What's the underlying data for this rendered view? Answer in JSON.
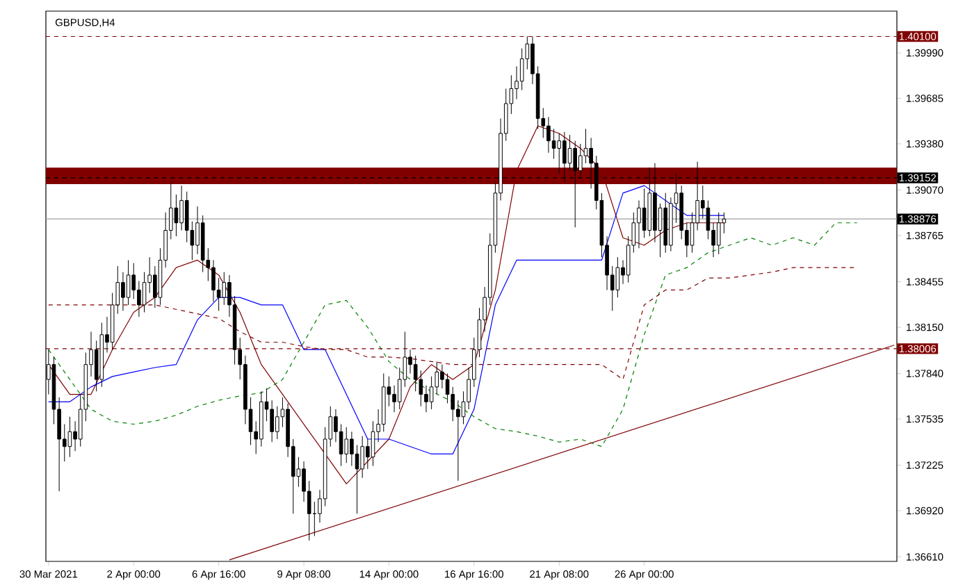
{
  "chart_data": {
    "type": "candlestick",
    "title": "GBPUSD,H4",
    "categories": [
      "30 Mar 2021",
      null,
      null,
      null,
      null,
      null,
      null,
      null,
      null,
      null,
      null,
      null,
      null,
      null,
      null,
      null,
      "2 Apr 00:00",
      null,
      null,
      null,
      null,
      null,
      null,
      null,
      null,
      null,
      null,
      null,
      null,
      null,
      null,
      null,
      "6 Apr 16:00",
      null,
      null,
      null,
      null,
      null,
      null,
      null,
      null,
      null,
      null,
      null,
      null,
      null,
      null,
      null,
      "9 Apr 08:00",
      null,
      null,
      null,
      null,
      null,
      null,
      null,
      null,
      null,
      null,
      null,
      null,
      null,
      null,
      null,
      "14 Apr 00:00",
      null,
      null,
      null,
      null,
      null,
      null,
      null,
      null,
      null,
      null,
      null,
      null,
      null,
      null,
      null,
      "16 Apr 16:00",
      null,
      null,
      null,
      null,
      null,
      null,
      null,
      null,
      null,
      null,
      null,
      null,
      null,
      null,
      null,
      "21 Apr 08:00",
      null,
      null,
      null,
      null,
      null,
      null,
      null,
      null,
      null,
      null,
      null,
      null,
      null,
      null,
      null,
      "26 Apr 00:00",
      null,
      null,
      null,
      null,
      null,
      null,
      null,
      null,
      null,
      null,
      null,
      null,
      null,
      null,
      null,
      null,
      null,
      null,
      null,
      null,
      null,
      null,
      null,
      null,
      null,
      null,
      null,
      null,
      null,
      null,
      null,
      null,
      null,
      null,
      null,
      null,
      null,
      null,
      null,
      null,
      null,
      null,
      null,
      null,
      null,
      null,
      null
    ],
    "ohlc": [
      [
        1.378,
        1.38,
        1.377,
        1.379
      ],
      [
        1.379,
        1.3795,
        1.375,
        1.376
      ],
      [
        1.376,
        1.3768,
        1.3705,
        1.374
      ],
      [
        1.374,
        1.375,
        1.3725,
        1.3735
      ],
      [
        1.3735,
        1.3755,
        1.3728,
        1.3745
      ],
      [
        1.3745,
        1.3752,
        1.3732,
        1.374
      ],
      [
        1.374,
        1.377,
        1.3735,
        1.376
      ],
      [
        1.376,
        1.3798,
        1.3752,
        1.379
      ],
      [
        1.379,
        1.3812,
        1.3782,
        1.38
      ],
      [
        1.38,
        1.3806,
        1.3772,
        1.378
      ],
      [
        1.378,
        1.3818,
        1.3775,
        1.381
      ],
      [
        1.381,
        1.3822,
        1.3798,
        1.3805
      ],
      [
        1.3805,
        1.3838,
        1.38,
        1.383
      ],
      [
        1.383,
        1.3856,
        1.3824,
        1.3845
      ],
      [
        1.3845,
        1.3852,
        1.3826,
        1.3835
      ],
      [
        1.3835,
        1.386,
        1.383,
        1.385
      ],
      [
        1.385,
        1.3858,
        1.3834,
        1.384
      ],
      [
        1.384,
        1.3846,
        1.3822,
        1.383
      ],
      [
        1.383,
        1.3852,
        1.3825,
        1.3845
      ],
      [
        1.3845,
        1.3862,
        1.3838,
        1.385
      ],
      [
        1.385,
        1.3856,
        1.3828,
        1.3835
      ],
      [
        1.3835,
        1.3868,
        1.383,
        1.386
      ],
      [
        1.386,
        1.3892,
        1.3855,
        1.388
      ],
      [
        1.388,
        1.3912,
        1.3874,
        1.3895
      ],
      [
        1.3895,
        1.3904,
        1.3876,
        1.3885
      ],
      [
        1.3885,
        1.391,
        1.388,
        1.39
      ],
      [
        1.39,
        1.3906,
        1.3872,
        1.388
      ],
      [
        1.388,
        1.3886,
        1.386,
        1.387
      ],
      [
        1.387,
        1.3896,
        1.3864,
        1.3885
      ],
      [
        1.3885,
        1.389,
        1.3852,
        1.386
      ],
      [
        1.386,
        1.3868,
        1.3846,
        1.3855
      ],
      [
        1.3855,
        1.386,
        1.3832,
        1.384
      ],
      [
        1.384,
        1.3848,
        1.3826,
        1.3835
      ],
      [
        1.3835,
        1.3852,
        1.383,
        1.3845
      ],
      [
        1.3845,
        1.385,
        1.3822,
        1.383
      ],
      [
        1.383,
        1.3836,
        1.379,
        1.38
      ],
      [
        1.38,
        1.3808,
        1.378,
        1.379
      ],
      [
        1.379,
        1.3796,
        1.375,
        1.376
      ],
      [
        1.376,
        1.3768,
        1.3736,
        1.3745
      ],
      [
        1.3745,
        1.3752,
        1.373,
        1.374
      ],
      [
        1.374,
        1.3772,
        1.3735,
        1.3765
      ],
      [
        1.3765,
        1.3774,
        1.3752,
        1.376
      ],
      [
        1.376,
        1.3766,
        1.3738,
        1.3745
      ],
      [
        1.3745,
        1.3762,
        1.374,
        1.3755
      ],
      [
        1.3755,
        1.3768,
        1.3748,
        1.376
      ],
      [
        1.376,
        1.3764,
        1.3728,
        1.3735
      ],
      [
        1.3735,
        1.374,
        1.369,
        1.3715
      ],
      [
        1.3715,
        1.3728,
        1.3708,
        1.372
      ],
      [
        1.372,
        1.3725,
        1.3698,
        1.3705
      ],
      [
        1.3705,
        1.3712,
        1.3672,
        1.369
      ],
      [
        1.369,
        1.3698,
        1.3675,
        1.369
      ],
      [
        1.369,
        1.3706,
        1.3684,
        1.37
      ],
      [
        1.37,
        1.3748,
        1.3695,
        1.374
      ],
      [
        1.374,
        1.3762,
        1.3735,
        1.3755
      ],
      [
        1.3755,
        1.376,
        1.3738,
        1.3745
      ],
      [
        1.3745,
        1.375,
        1.3722,
        1.373
      ],
      [
        1.373,
        1.3748,
        1.3724,
        1.374
      ],
      [
        1.374,
        1.3745,
        1.3722,
        1.373
      ],
      [
        1.373,
        1.3736,
        1.369,
        1.372
      ],
      [
        1.372,
        1.3742,
        1.3714,
        1.3735
      ],
      [
        1.3735,
        1.374,
        1.372,
        1.3728
      ],
      [
        1.3728,
        1.3752,
        1.3722,
        1.3745
      ],
      [
        1.3745,
        1.376,
        1.3738,
        1.375
      ],
      [
        1.375,
        1.3784,
        1.3745,
        1.3775
      ],
      [
        1.3775,
        1.3782,
        1.3762,
        1.377
      ],
      [
        1.377,
        1.3776,
        1.3758,
        1.3765
      ],
      [
        1.3765,
        1.3788,
        1.376,
        1.378
      ],
      [
        1.378,
        1.3812,
        1.3775,
        1.3795
      ],
      [
        1.3795,
        1.38,
        1.3784,
        1.379
      ],
      [
        1.379,
        1.3796,
        1.3772,
        1.378
      ],
      [
        1.378,
        1.3786,
        1.3762,
        1.377
      ],
      [
        1.377,
        1.3776,
        1.3758,
        1.3765
      ],
      [
        1.3765,
        1.3782,
        1.376,
        1.3775
      ],
      [
        1.3775,
        1.3792,
        1.377,
        1.3785
      ],
      [
        1.3785,
        1.379,
        1.3774,
        1.378
      ],
      [
        1.378,
        1.3784,
        1.3764,
        1.377
      ],
      [
        1.377,
        1.3775,
        1.3752,
        1.376
      ],
      [
        1.376,
        1.3766,
        1.3712,
        1.3755
      ],
      [
        1.3755,
        1.3772,
        1.375,
        1.3765
      ],
      [
        1.3765,
        1.3788,
        1.376,
        1.378
      ],
      [
        1.378,
        1.3808,
        1.3775,
        1.38
      ],
      [
        1.38,
        1.3828,
        1.3795,
        1.382
      ],
      [
        1.382,
        1.3842,
        1.3812,
        1.3835
      ],
      [
        1.3835,
        1.3878,
        1.383,
        1.387
      ],
      [
        1.387,
        1.3912,
        1.3865,
        1.3905
      ],
      [
        1.3905,
        1.3955,
        1.39,
        1.3945
      ],
      [
        1.3945,
        1.3975,
        1.394,
        1.3965
      ],
      [
        1.3965,
        1.3984,
        1.3958,
        1.3975
      ],
      [
        1.3975,
        1.399,
        1.3968,
        1.398
      ],
      [
        1.398,
        1.4002,
        1.3974,
        1.3995
      ],
      [
        1.3995,
        1.401,
        1.3988,
        1.4005
      ],
      [
        1.4005,
        1.401,
        1.3978,
        1.3985
      ],
      [
        1.3985,
        1.399,
        1.3948,
        1.3955
      ],
      [
        1.3955,
        1.3962,
        1.3942,
        1.395
      ],
      [
        1.395,
        1.3956,
        1.3932,
        1.394
      ],
      [
        1.394,
        1.3948,
        1.3928,
        1.3935
      ],
      [
        1.3935,
        1.3945,
        1.3918,
        1.394
      ],
      [
        1.394,
        1.3946,
        1.3912,
        1.3925
      ],
      [
        1.3925,
        1.3944,
        1.392,
        1.3935
      ],
      [
        1.3935,
        1.394,
        1.3882,
        1.392
      ],
      [
        1.392,
        1.3938,
        1.3915,
        1.393
      ],
      [
        1.393,
        1.3948,
        1.3925,
        1.3935
      ],
      [
        1.3935,
        1.3942,
        1.3908,
        1.3925
      ],
      [
        1.3925,
        1.393,
        1.3894,
        1.39
      ],
      [
        1.39,
        1.3905,
        1.3862,
        1.387
      ],
      [
        1.387,
        1.3876,
        1.384,
        1.385
      ],
      [
        1.385,
        1.3856,
        1.3826,
        1.384
      ],
      [
        1.384,
        1.3862,
        1.3835,
        1.3855
      ],
      [
        1.3855,
        1.386,
        1.3844,
        1.385
      ],
      [
        1.385,
        1.3876,
        1.3845,
        1.387
      ],
      [
        1.387,
        1.3892,
        1.3865,
        1.3885
      ],
      [
        1.3885,
        1.39,
        1.3868,
        1.3895
      ],
      [
        1.3895,
        1.3908,
        1.3875,
        1.388
      ],
      [
        1.388,
        1.3922,
        1.3876,
        1.3905
      ],
      [
        1.3905,
        1.3925,
        1.3872,
        1.388
      ],
      [
        1.388,
        1.3898,
        1.3862,
        1.3895
      ],
      [
        1.3895,
        1.3905,
        1.3865,
        1.387
      ],
      [
        1.387,
        1.3902,
        1.3866,
        1.3898
      ],
      [
        1.3898,
        1.3918,
        1.3885,
        1.3905
      ],
      [
        1.3905,
        1.391,
        1.3874,
        1.388
      ],
      [
        1.388,
        1.3885,
        1.3862,
        1.387
      ],
      [
        1.387,
        1.3892,
        1.3865,
        1.3885
      ],
      [
        1.3885,
        1.3926,
        1.388,
        1.39
      ],
      [
        1.39,
        1.391,
        1.3888,
        1.3895
      ],
      [
        1.3895,
        1.39,
        1.3874,
        1.388
      ],
      [
        1.388,
        1.3885,
        1.3862,
        1.387
      ],
      [
        1.387,
        1.3892,
        1.3864,
        1.3885
      ],
      [
        1.3885,
        1.3892,
        1.3878,
        1.38876
      ],
      null,
      null,
      null,
      null,
      null,
      null,
      null,
      null,
      null,
      null,
      null,
      null,
      null,
      null,
      null,
      null,
      null,
      null,
      null,
      null,
      null,
      null,
      null,
      null,
      null,
      null,
      null,
      null,
      null,
      null,
      null,
      null
    ],
    "series": [
      {
        "type": "line",
        "color": "#800000",
        "line_style": "solid",
        "values": [
          1.379,
          null,
          null,
          null,
          1.377,
          null,
          null,
          null,
          1.377,
          null,
          null,
          null,
          1.38,
          null,
          null,
          null,
          1.3825,
          null,
          null,
          null,
          1.3835,
          null,
          null,
          null,
          1.3855,
          null,
          null,
          null,
          1.386,
          null,
          null,
          null,
          1.385,
          null,
          null,
          null,
          1.3825,
          null,
          null,
          null,
          1.379,
          null,
          null,
          null,
          1.377,
          null,
          null,
          null,
          1.375,
          null,
          null,
          null,
          1.373,
          null,
          null,
          null,
          1.371,
          null,
          null,
          null,
          1.3725,
          null,
          null,
          null,
          1.374,
          null,
          null,
          null,
          1.3775,
          null,
          null,
          null,
          1.379,
          null,
          null,
          null,
          1.378,
          null,
          null,
          null,
          1.379,
          null,
          null,
          null,
          1.384,
          null,
          null,
          null,
          1.392,
          null,
          null,
          null,
          1.395,
          null,
          null,
          null,
          1.3945,
          null,
          null,
          null,
          1.3935,
          null,
          null,
          null,
          1.392,
          null,
          null,
          null,
          1.3875,
          null,
          null,
          null,
          1.387,
          null,
          null,
          null,
          1.388,
          null,
          null,
          null,
          1.3885,
          null,
          null,
          null,
          1.3885,
          null,
          null,
          1.3885,
          null,
          null,
          null,
          null,
          null,
          null,
          null,
          null,
          null,
          null,
          null,
          null,
          null,
          null,
          null,
          null,
          null,
          null,
          null,
          null,
          null,
          null,
          null,
          null,
          null,
          null,
          null,
          null,
          null,
          null,
          null,
          null
        ]
      },
      {
        "type": "line",
        "color": "#0000ff",
        "line_style": "solid",
        "values": [
          1.3765,
          null,
          null,
          null,
          1.3765,
          null,
          null,
          null,
          1.3775,
          null,
          null,
          null,
          1.3782,
          null,
          null,
          null,
          1.3785,
          null,
          null,
          null,
          1.3788,
          null,
          null,
          null,
          1.379,
          null,
          null,
          null,
          1.382,
          null,
          null,
          null,
          1.3835,
          null,
          null,
          null,
          1.3835,
          null,
          null,
          null,
          1.383,
          null,
          null,
          null,
          1.383,
          null,
          null,
          null,
          1.38,
          null,
          null,
          null,
          1.38,
          null,
          null,
          null,
          1.377,
          null,
          null,
          null,
          1.374,
          null,
          null,
          null,
          1.374,
          null,
          null,
          null,
          1.3735,
          null,
          null,
          null,
          1.373,
          null,
          null,
          null,
          1.373,
          null,
          null,
          null,
          1.376,
          null,
          null,
          null,
          1.383,
          null,
          null,
          null,
          1.386,
          null,
          null,
          null,
          1.386,
          null,
          null,
          null,
          1.386,
          null,
          null,
          null,
          1.386,
          null,
          null,
          null,
          1.386,
          null,
          null,
          null,
          1.3905,
          null,
          null,
          null,
          1.391,
          null,
          null,
          null,
          1.39,
          null,
          null,
          null,
          1.389,
          null,
          null,
          null,
          1.389,
          null,
          null,
          1.389,
          null,
          null,
          null,
          null,
          null,
          null,
          null,
          null,
          null,
          null,
          null,
          null,
          null,
          null,
          null,
          null,
          null,
          null,
          null,
          null,
          null,
          null,
          null,
          null,
          null,
          null,
          null,
          null,
          null,
          null,
          null,
          null
        ]
      },
      {
        "type": "line",
        "color": "#008000",
        "line_style": "dashed",
        "values": [
          1.38,
          null,
          null,
          null,
          1.378,
          null,
          null,
          null,
          1.376,
          null,
          null,
          null,
          1.3752,
          null,
          null,
          null,
          1.375,
          null,
          null,
          null,
          1.3752,
          null,
          null,
          null,
          1.3756,
          null,
          null,
          null,
          1.3762,
          null,
          null,
          null,
          1.3766,
          null,
          null,
          null,
          1.3769,
          null,
          null,
          null,
          1.3771,
          null,
          null,
          null,
          1.378,
          null,
          null,
          null,
          1.3805,
          null,
          null,
          null,
          1.383,
          null,
          null,
          null,
          1.3833,
          null,
          null,
          null,
          1.3815,
          null,
          null,
          null,
          1.3792,
          null,
          null,
          null,
          1.378,
          null,
          null,
          null,
          1.3772,
          null,
          null,
          null,
          1.3765,
          null,
          null,
          null,
          1.3755,
          null,
          null,
          null,
          1.3747,
          null,
          null,
          null,
          1.3745,
          null,
          null,
          null,
          1.3742,
          null,
          null,
          null,
          1.3738,
          null,
          null,
          null,
          1.374,
          null,
          null,
          null,
          1.3735,
          null,
          null,
          null,
          1.376,
          null,
          null,
          null,
          1.381,
          null,
          null,
          null,
          1.385,
          null,
          null,
          null,
          1.3855,
          null,
          null,
          null,
          1.3865,
          null,
          null,
          null,
          1.387,
          null,
          null,
          null,
          1.3875,
          null,
          null,
          null,
          1.387,
          null,
          null,
          null,
          1.3875,
          null,
          null,
          null,
          1.387,
          null,
          null,
          null,
          1.3885,
          null,
          null,
          null,
          1.3885,
          null,
          null,
          null,
          null,
          null,
          null,
          null
        ]
      },
      {
        "type": "line",
        "color": "#800000",
        "line_style": "dashed",
        "values": [
          1.383,
          null,
          null,
          null,
          1.383,
          null,
          null,
          null,
          1.383,
          null,
          null,
          null,
          1.383,
          null,
          null,
          null,
          1.383,
          null,
          null,
          null,
          1.383,
          null,
          null,
          null,
          1.3827,
          null,
          null,
          null,
          1.3824,
          null,
          null,
          null,
          1.3821,
          null,
          null,
          null,
          1.3812,
          null,
          null,
          null,
          1.3805,
          null,
          null,
          null,
          1.3805,
          null,
          null,
          null,
          1.3802,
          null,
          null,
          null,
          1.38,
          null,
          null,
          null,
          1.38,
          null,
          null,
          null,
          1.3795,
          null,
          null,
          null,
          1.3795,
          null,
          null,
          null,
          1.3794,
          null,
          null,
          null,
          1.3792,
          null,
          null,
          null,
          1.379,
          null,
          null,
          null,
          1.379,
          null,
          null,
          null,
          1.379,
          null,
          null,
          null,
          1.379,
          null,
          null,
          null,
          1.379,
          null,
          null,
          null,
          1.379,
          null,
          null,
          null,
          1.379,
          null,
          null,
          null,
          1.379,
          null,
          null,
          null,
          1.378,
          null,
          null,
          null,
          1.383,
          null,
          null,
          null,
          1.384,
          null,
          null,
          null,
          1.384,
          null,
          null,
          null,
          1.3848,
          null,
          null,
          null,
          1.3848,
          null,
          null,
          null,
          1.385,
          null,
          null,
          null,
          1.3852,
          null,
          null,
          null,
          1.3855,
          null,
          null,
          null,
          1.3855,
          null,
          null,
          null,
          1.3855,
          null,
          null,
          null,
          1.3855,
          null,
          null,
          null,
          null,
          null,
          null,
          null
        ]
      },
      {
        "type": "line",
        "color": "#800000",
        "line_style": "solid",
        "values": [
          null,
          null,
          null,
          null,
          null,
          null,
          null,
          null,
          null,
          null,
          null,
          null,
          null,
          null,
          null,
          null,
          null,
          null,
          null,
          null,
          null,
          null,
          null,
          null,
          null,
          null,
          null,
          null,
          null,
          null,
          null,
          null,
          null,
          null,
          1.3659,
          null,
          null,
          null,
          null,
          null,
          null,
          null,
          null,
          null,
          null,
          null,
          null,
          null,
          null,
          null,
          null,
          null,
          null,
          null,
          null,
          null,
          null,
          null,
          null,
          null,
          null,
          null,
          null,
          null,
          null,
          null,
          null,
          null,
          null,
          null,
          null,
          null,
          null,
          null,
          null,
          null,
          null,
          null,
          null,
          null,
          null,
          null,
          null,
          null,
          null,
          null,
          null,
          null,
          null,
          null,
          null,
          null,
          null,
          null,
          null,
          null,
          null,
          null,
          null,
          null,
          null,
          null,
          null,
          null,
          null,
          null,
          null,
          null,
          null,
          null,
          null,
          null,
          null,
          null,
          null,
          null,
          null,
          null,
          null,
          null,
          null,
          null,
          null,
          null,
          null,
          null,
          null,
          null,
          null,
          null,
          null,
          null,
          null,
          null,
          null,
          null,
          null,
          null,
          null,
          null,
          null,
          null,
          null,
          null,
          null,
          null,
          null,
          null,
          null,
          null,
          null,
          null,
          null,
          null,
          null,
          null,
          null,
          null,
          null,
          1.3803
        ]
      }
    ],
    "ref_lines": [
      {
        "axis": "y",
        "value": 1.401,
        "label": "1.40100",
        "color": "#800000",
        "line_style": "dashed"
      },
      {
        "axis": "y",
        "value": 1.39152,
        "label": "1.39152",
        "color": "#000000",
        "line_style": "dashed"
      },
      {
        "axis": "y",
        "value": 1.38006,
        "label": "1.38006",
        "color": "#800000",
        "line_style": "dashed"
      },
      {
        "axis": "y",
        "value": 1.38876,
        "label": "1.38876",
        "color": "#a0a0a0",
        "line_style": "solid"
      }
    ],
    "bands": [
      {
        "axis": "y",
        "from": 1.3911,
        "to": 1.3922,
        "color": "#800000"
      }
    ],
    "ylim": [
      1.3658,
      1.4027
    ],
    "yticks": [
      {
        "value": 1.3661,
        "label": "1.36610"
      },
      {
        "value": 1.3692,
        "label": "1.36920"
      },
      {
        "value": 1.37225,
        "label": "1.37225"
      },
      {
        "value": 1.37535,
        "label": "1.37535"
      },
      {
        "value": 1.3784,
        "label": "1.37840"
      },
      {
        "value": 1.3815,
        "label": "1.38150"
      },
      {
        "value": 1.38455,
        "label": "1.38455"
      },
      {
        "value": 1.38765,
        "label": "1.38765"
      },
      {
        "value": 1.3907,
        "label": "1.39070"
      },
      {
        "value": 1.3938,
        "label": "1.39380"
      },
      {
        "value": 1.39685,
        "label": "1.39685"
      },
      {
        "value": 1.3999,
        "label": "1.39990"
      }
    ],
    "grid": false
  }
}
